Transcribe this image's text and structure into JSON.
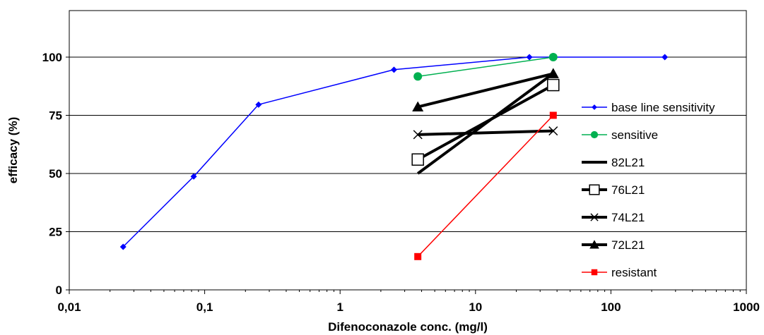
{
  "chart_data": {
    "type": "line",
    "xlabel": "Difenoconazole conc. (mg/l)",
    "ylabel": "efficacy (%)",
    "x_scale": "log",
    "xlim": [
      0.01,
      1000
    ],
    "ylim": [
      0,
      120
    ],
    "x_ticks": [
      0.01,
      0.1,
      1,
      10,
      100,
      1000
    ],
    "x_tick_labels": [
      "0,01",
      "0,1",
      "1",
      "10",
      "100",
      "1000"
    ],
    "y_ticks": [
      0,
      25,
      50,
      75,
      100
    ],
    "y_tick_labels": [
      "0",
      "25",
      "50",
      "75",
      "100"
    ],
    "grid": "horizontal",
    "legend_position": "right",
    "series": [
      {
        "name": "base line sensitivity",
        "color": "#0000ff",
        "marker": "diamond",
        "line_width": "thin",
        "x": [
          0.025,
          0.083,
          0.25,
          2.5,
          25,
          250
        ],
        "values": [
          18.5,
          48.7,
          79.6,
          94.6,
          100,
          100
        ]
      },
      {
        "name": "sensitive",
        "color": "#00b050",
        "marker": "circle",
        "line_width": "thin",
        "x": [
          3.75,
          37.5
        ],
        "values": [
          91.7,
          100
        ]
      },
      {
        "name": "82L21",
        "color": "#000000",
        "marker": "none",
        "line_width": "thick",
        "x": [
          3.75,
          37.5
        ],
        "values": [
          50,
          93
        ]
      },
      {
        "name": "76L21",
        "color": "#000000",
        "marker": "square-open",
        "line_width": "thick",
        "x": [
          3.75,
          37.5
        ],
        "values": [
          56,
          88
        ]
      },
      {
        "name": "74L21",
        "color": "#000000",
        "marker": "x",
        "line_width": "thick",
        "x": [
          3.75,
          37.5
        ],
        "values": [
          66.7,
          68.3
        ]
      },
      {
        "name": "72L21",
        "color": "#000000",
        "marker": "triangle",
        "line_width": "thick",
        "x": [
          3.75,
          37.5
        ],
        "values": [
          78.6,
          92.9
        ]
      },
      {
        "name": "resistant",
        "color": "#ff0000",
        "marker": "square",
        "line_width": "thin",
        "x": [
          3.75,
          37.5
        ],
        "values": [
          14.3,
          75
        ]
      }
    ]
  }
}
